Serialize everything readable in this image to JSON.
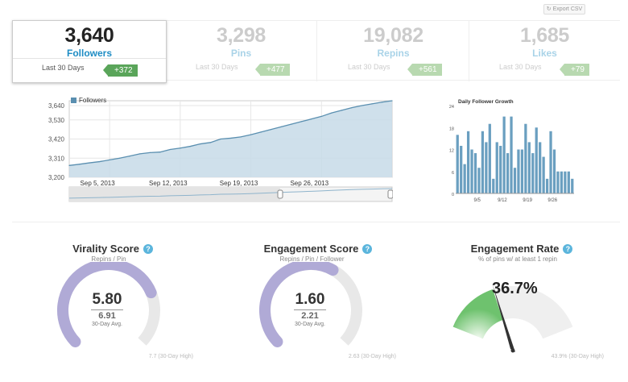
{
  "toolbar": {
    "export_label": "Export CSV"
  },
  "stats": [
    {
      "value": "3,640",
      "label": "Followers",
      "period": "Last 30 Days",
      "change": "+372"
    },
    {
      "value": "3,298",
      "label": "Pins",
      "period": "Last 30 Days",
      "change": "+477"
    },
    {
      "value": "19,082",
      "label": "Repins",
      "period": "Last 30 Days",
      "change": "+561"
    },
    {
      "value": "1,685",
      "label": "Likes",
      "period": "Last 30 Days",
      "change": "+79"
    }
  ],
  "colors": {
    "accent": "#1e8cc4",
    "series": "#5a8fb0",
    "area": "#c7dbe8",
    "bar": "#6a9fc0",
    "gauge_purple": "#b0aad6",
    "gauge_green": "#6ec26e",
    "positive": "#5aa55a"
  },
  "chart_data": [
    {
      "type": "area",
      "title": "",
      "legend": "Followers",
      "legend_position": "top-left",
      "x_tick_labels": [
        "Sep 5, 2013",
        "Sep 12, 2013",
        "Sep 19, 2013",
        "Sep 26, 2013"
      ],
      "y_tick_labels": [
        "3,640",
        "3,530",
        "3,420",
        "3,310",
        "3,200"
      ],
      "ylim": [
        3200,
        3640
      ],
      "series": [
        {
          "name": "Followers",
          "values": [
            3268,
            3275,
            3283,
            3290,
            3300,
            3310,
            3322,
            3335,
            3342,
            3345,
            3360,
            3368,
            3378,
            3392,
            3400,
            3420,
            3425,
            3432,
            3445,
            3460,
            3475,
            3490,
            3505,
            3520,
            3535,
            3550,
            3570,
            3585,
            3600,
            3612,
            3622,
            3632,
            3640
          ]
        }
      ]
    },
    {
      "type": "bar",
      "title": "Daily Follower Growth",
      "x_tick_labels": [
        "9/5",
        "9/12",
        "9/19",
        "9/26"
      ],
      "y_tick_labels": [
        "24",
        "18",
        "12",
        "6",
        "0"
      ],
      "ylim": [
        0,
        24
      ],
      "values": [
        16,
        13,
        8,
        17,
        12,
        11,
        7,
        17,
        14,
        19,
        4,
        14,
        13,
        21,
        11,
        21,
        7,
        12,
        12,
        19,
        14,
        11,
        18,
        14,
        10,
        4,
        17,
        12,
        6,
        6,
        6,
        6,
        4
      ]
    }
  ],
  "gauges": [
    {
      "title": "Virality Score",
      "help": "?",
      "subtitle": "Repins / Pin",
      "value": "5.80",
      "value_num": 5.8,
      "avg": "6.91",
      "avg_label": "30-Day Avg.",
      "high": "7.7 (30-Day High)",
      "high_num": 7.7
    },
    {
      "title": "Engagement Score",
      "help": "?",
      "subtitle": "Repins / Pin / Follower",
      "value": "1.60",
      "value_num": 1.6,
      "avg": "2.21",
      "avg_label": "30-Day Avg.",
      "high": "2.63 (30-Day High)",
      "high_num": 2.63
    }
  ],
  "rate": {
    "title": "Engagement Rate",
    "help": "?",
    "subtitle": "% of pins w/ at least 1 repin",
    "value": "36.7%",
    "value_num": 36.7,
    "high": "43.9% (30-Day High)",
    "high_num": 43.9
  }
}
